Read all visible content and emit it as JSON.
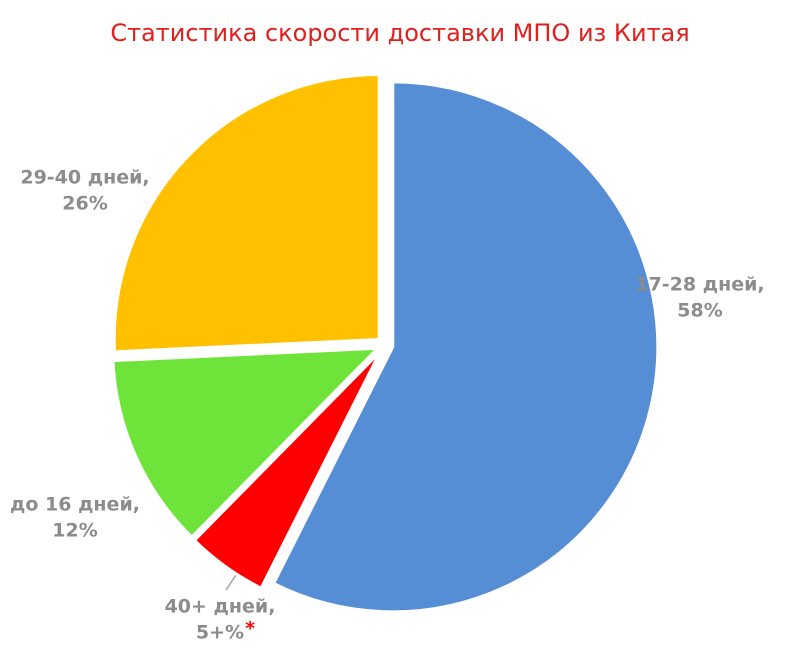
{
  "chart_data": {
    "type": "pie",
    "title": "Статистика скорости доставки МПО из Китая",
    "categories": [
      "17-28 дней,",
      "40+ дней,",
      "до 16 дней,",
      "29-40 дней,"
    ],
    "values": [
      58,
      5,
      12,
      26
    ],
    "value_labels": [
      "58%",
      "5+%",
      "12%",
      "26%"
    ],
    "colors": [
      "#558ed5",
      "#ff0000",
      "#6ee33a",
      "#ffc000"
    ],
    "footnote_mark": "*"
  }
}
